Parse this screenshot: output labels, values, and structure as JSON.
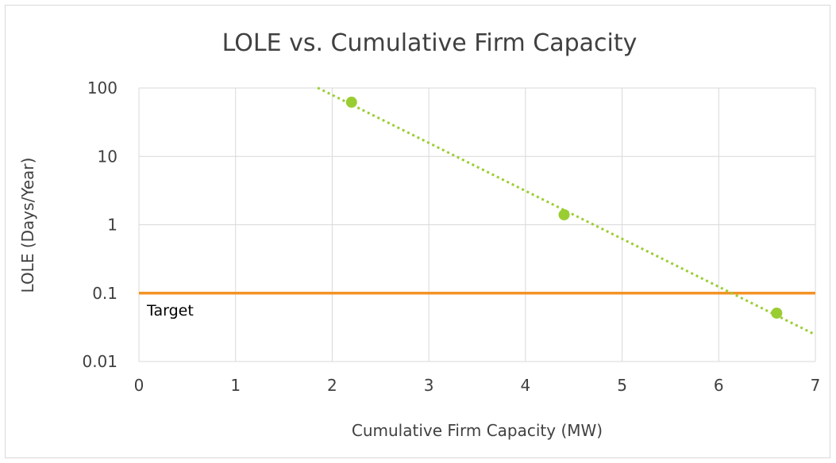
{
  "chart_data": {
    "type": "scatter",
    "title": "LOLE vs. Cumulative Firm Capacity",
    "xlabel": "Cumulative Firm Capacity (MW)",
    "ylabel": "LOLE (Days/Year)",
    "xlim": [
      0,
      7
    ],
    "ylim": [
      0.01,
      100
    ],
    "y_scale": "log",
    "grid": true,
    "x_ticks": [
      "0",
      "1",
      "2",
      "3",
      "4",
      "5",
      "6",
      "7"
    ],
    "y_ticks": [
      "0.01",
      "0.1",
      "1",
      "10",
      "100"
    ],
    "series": [
      {
        "type": "scatter",
        "color": "#9acd32",
        "points": [
          {
            "x": 2.2,
            "y": 62
          },
          {
            "x": 4.4,
            "y": 1.4
          },
          {
            "x": 6.6,
            "y": 0.051
          }
        ],
        "trendline": {
          "style": "dotted",
          "kind": "exponential",
          "from_x": 1.85,
          "to_x": 7.0
        }
      }
    ],
    "reference_line": {
      "y": 0.1,
      "color": "#f39325",
      "label": "Target"
    }
  }
}
